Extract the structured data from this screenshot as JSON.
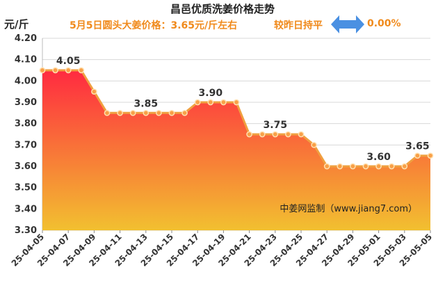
{
  "header": {
    "title": "昌邑优质洗姜价格走势",
    "unit": "元/斤",
    "price_note": "5月5日圆头大姜价格：3.65元/斤左右",
    "compare_label": "较昨日持平",
    "compare_pct": "0.00%"
  },
  "colors": {
    "line": "#f0a040",
    "marker_fill": "#f8a048",
    "area_top": "#ff2a40",
    "area_bottom": "#f2c030",
    "accent_text": "#f08a1c",
    "flat_arrow": "#4a90e2"
  },
  "watermark": "中姜网监制（www.jiang7.com）",
  "chart_data": {
    "type": "area",
    "title": "昌邑优质洗姜价格走势",
    "ylabel": "元/斤",
    "ylim": [
      3.3,
      4.2
    ],
    "yticks": [
      "3.30",
      "3.40",
      "3.50",
      "3.60",
      "3.70",
      "3.80",
      "3.90",
      "4.00",
      "4.10",
      "4.20"
    ],
    "grid": true,
    "x": [
      "25-04-05",
      "25-04-06",
      "25-04-07",
      "25-04-08",
      "25-04-09",
      "25-04-10",
      "25-04-11",
      "25-04-12",
      "25-04-13",
      "25-04-14",
      "25-04-15",
      "25-04-16",
      "25-04-17",
      "25-04-18",
      "25-04-19",
      "25-04-20",
      "25-04-21",
      "25-04-22",
      "25-04-23",
      "25-04-24",
      "25-04-25",
      "25-04-26",
      "25-04-27",
      "25-04-28",
      "25-04-29",
      "25-04-30",
      "25-05-01",
      "25-05-02",
      "25-05-03",
      "25-05-04",
      "25-05-05"
    ],
    "xtick_labels": [
      "25-04-05",
      "25-04-07",
      "25-04-09",
      "25-04-11",
      "25-04-13",
      "25-04-15",
      "25-04-17",
      "25-04-19",
      "25-04-21",
      "25-04-23",
      "25-04-25",
      "25-04-27",
      "25-04-29",
      "25-05-01",
      "25-05-03",
      "25-05-05"
    ],
    "values": [
      4.05,
      4.05,
      4.05,
      4.05,
      3.95,
      3.85,
      3.85,
      3.85,
      3.85,
      3.85,
      3.85,
      3.85,
      3.9,
      3.9,
      3.9,
      3.9,
      3.75,
      3.75,
      3.75,
      3.75,
      3.75,
      3.7,
      3.6,
      3.6,
      3.6,
      3.6,
      3.6,
      3.6,
      3.6,
      3.65,
      3.65
    ],
    "data_labels": [
      {
        "index": 2,
        "text": "4.05"
      },
      {
        "index": 8,
        "text": "3.85"
      },
      {
        "index": 13,
        "text": "3.90"
      },
      {
        "index": 18,
        "text": "3.75"
      },
      {
        "index": 26,
        "text": "3.60"
      },
      {
        "index": 29,
        "text": "3.65"
      }
    ]
  }
}
